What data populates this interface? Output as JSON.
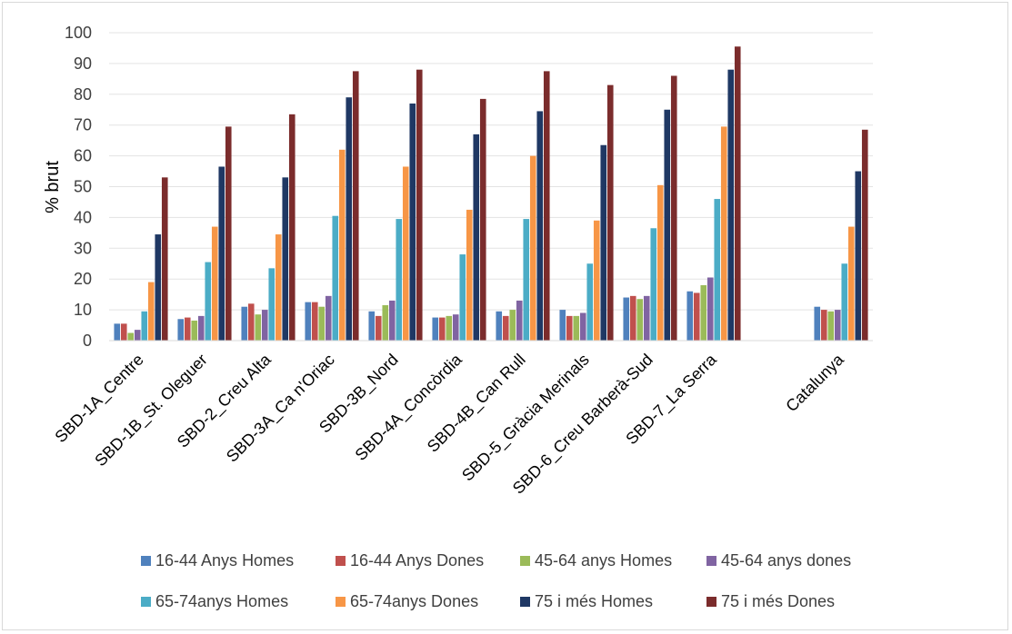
{
  "chart_data": {
    "type": "bar",
    "title": "",
    "xlabel": "",
    "ylabel": "% brut",
    "ylim": [
      0,
      100
    ],
    "yticks": [
      "0",
      "10",
      "20",
      "30",
      "40",
      "50",
      "60",
      "70",
      "80",
      "90",
      "100"
    ],
    "grid": "horizontal",
    "legend_position": "bottom",
    "categories": [
      "SBD-1A_Centre",
      "SBD-1B_St. Oleguer",
      "SBD-2_Creu Alta",
      "SBD-3A_Ca n'Oriac",
      "SBD-3B_Nord",
      "SBD-4A_Concòrdia",
      "SBD-4B_Can Rull",
      "SBD-5_Gràcia Merinals",
      "SBD-6_Creu Barberà-Sud",
      "SBD-7_La Serra",
      "",
      "Catalunya"
    ],
    "series": [
      {
        "name": "16-44 Anys Homes",
        "color": "#4f81bd",
        "values": [
          5.5,
          7,
          11,
          12.5,
          9.5,
          7.5,
          9.5,
          10,
          14,
          16,
          null,
          11
        ]
      },
      {
        "name": "16-44 Anys Dones",
        "color": "#c0504d",
        "values": [
          5.5,
          7.5,
          12,
          12.5,
          8,
          7.5,
          8,
          8,
          14.5,
          15.5,
          null,
          10
        ]
      },
      {
        "name": "45-64 anys Homes",
        "color": "#9bbb59",
        "values": [
          2.5,
          6.5,
          8.5,
          11,
          11.5,
          8,
          10,
          8,
          13.5,
          18,
          null,
          9.5
        ]
      },
      {
        "name": "45-64 anys dones",
        "color": "#8064a2",
        "values": [
          3.5,
          8,
          10,
          14.5,
          13,
          8.5,
          13,
          9,
          14.5,
          20.5,
          null,
          10
        ]
      },
      {
        "name": "65-74anys Homes",
        "color": "#4bacc6",
        "values": [
          9.5,
          25.5,
          23.5,
          40.5,
          39.5,
          28,
          39.5,
          25,
          36.5,
          46,
          null,
          25
        ]
      },
      {
        "name": "65-74anys Dones",
        "color": "#f79646",
        "values": [
          19,
          37,
          34.5,
          62,
          56.5,
          42.5,
          60,
          39,
          50.5,
          69.5,
          null,
          37
        ]
      },
      {
        "name": "75 i més Homes",
        "color": "#1f3864",
        "values": [
          34.5,
          56.5,
          53,
          79,
          77,
          67,
          74.5,
          63.5,
          75,
          88,
          null,
          55
        ]
      },
      {
        "name": "75 i més Dones",
        "color": "#7b2c2c",
        "values": [
          53,
          69.5,
          73.5,
          87.5,
          88,
          78.5,
          87.5,
          83,
          86,
          95.5,
          null,
          68.5
        ]
      }
    ]
  }
}
